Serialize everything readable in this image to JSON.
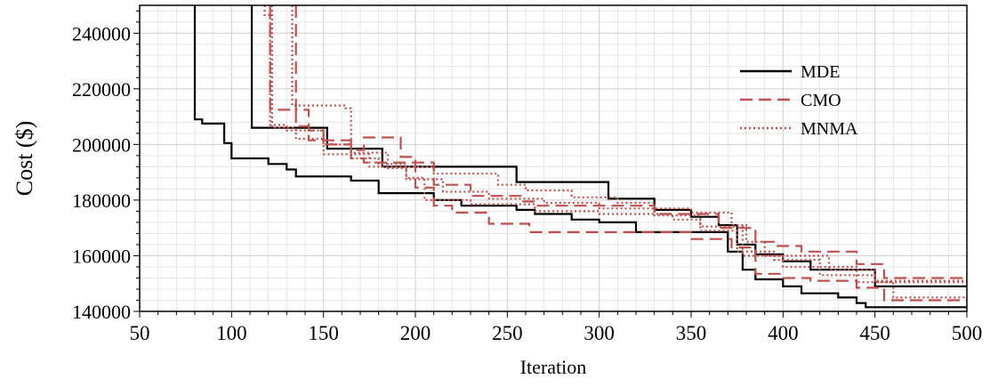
{
  "chart_data": {
    "type": "line",
    "title": "",
    "xlabel": "Iteration",
    "ylabel": "Cost ($)",
    "xlim": [
      50,
      500
    ],
    "ylim": [
      140000,
      250000
    ],
    "xticks": [
      50,
      100,
      150,
      200,
      250,
      300,
      350,
      400,
      450,
      500
    ],
    "yticks": [
      140000,
      160000,
      180000,
      200000,
      220000,
      240000
    ],
    "grid": true,
    "legend": "top-right",
    "series": [
      {
        "name": "MDE",
        "color": "#000000",
        "dash": "solid",
        "lines": [
          [
            [
              80,
              250000
            ],
            [
              80,
              209000
            ],
            [
              84,
              209000
            ],
            [
              84,
              207500
            ],
            [
              96,
              207500
            ],
            [
              96,
              200500
            ],
            [
              100,
              200500
            ],
            [
              100,
              195000
            ],
            [
              120,
              195000
            ],
            [
              120,
              193000
            ],
            [
              130,
              193000
            ],
            [
              130,
              191000
            ],
            [
              135,
              191000
            ],
            [
              135,
              188500
            ],
            [
              165,
              188500
            ],
            [
              165,
              187000
            ],
            [
              180,
              187000
            ],
            [
              180,
              182500
            ],
            [
              210,
              182500
            ],
            [
              210,
              180000
            ],
            [
              225,
              180000
            ],
            [
              225,
              178000
            ],
            [
              255,
              178000
            ],
            [
              255,
              176500
            ],
            [
              265,
              176500
            ],
            [
              265,
              175000
            ],
            [
              285,
              175000
            ],
            [
              285,
              173000
            ],
            [
              300,
              173000
            ],
            [
              300,
              172000
            ],
            [
              320,
              172000
            ],
            [
              320,
              168500
            ],
            [
              370,
              168500
            ],
            [
              370,
              161500
            ],
            [
              378,
              161500
            ],
            [
              378,
              155000
            ],
            [
              385,
              155000
            ],
            [
              385,
              151500
            ],
            [
              400,
              151500
            ],
            [
              400,
              149000
            ],
            [
              410,
              149000
            ],
            [
              410,
              146500
            ],
            [
              430,
              146500
            ],
            [
              430,
              145000
            ],
            [
              440,
              145000
            ],
            [
              440,
              143000
            ],
            [
              445,
              143000
            ],
            [
              445,
              141500
            ],
            [
              500,
              141500
            ]
          ],
          [
            [
              111,
              250000
            ],
            [
              111,
              206000
            ],
            [
              152,
              206000
            ],
            [
              152,
              198500
            ],
            [
              182,
              198500
            ],
            [
              182,
              192000
            ],
            [
              255,
              192000
            ],
            [
              255,
              186500
            ],
            [
              305,
              186500
            ],
            [
              305,
              180500
            ],
            [
              330,
              180500
            ],
            [
              330,
              176500
            ],
            [
              350,
              176500
            ],
            [
              350,
              174000
            ],
            [
              365,
              174000
            ],
            [
              365,
              171000
            ],
            [
              375,
              171000
            ],
            [
              375,
              164000
            ],
            [
              385,
              164000
            ],
            [
              385,
              160500
            ],
            [
              400,
              160500
            ],
            [
              400,
              158000
            ],
            [
              415,
              158000
            ],
            [
              415,
              155000
            ],
            [
              450,
              155000
            ],
            [
              450,
              149000
            ],
            [
              500,
              149000
            ]
          ]
        ]
      },
      {
        "name": "CMO",
        "color": "#c0504d",
        "dash": "dashed",
        "lines": [
          [
            [
              135,
              250000
            ],
            [
              135,
              212500
            ],
            [
              142,
              212500
            ],
            [
              142,
              205000
            ],
            [
              150,
              205000
            ],
            [
              150,
              200000
            ],
            [
              165,
              200000
            ],
            [
              165,
              198000
            ],
            [
              172,
              198000
            ],
            [
              172,
              202500
            ],
            [
              192,
              202500
            ],
            [
              192,
              195500
            ],
            [
              200,
              195500
            ],
            [
              200,
              184500
            ],
            [
              210,
              184500
            ],
            [
              210,
              178000
            ],
            [
              220,
              178000
            ],
            [
              220,
              175500
            ],
            [
              240,
              175500
            ],
            [
              240,
              171500
            ],
            [
              262,
              171500
            ],
            [
              262,
              168500
            ],
            [
              350,
              168500
            ],
            [
              350,
              166000
            ],
            [
              372,
              166000
            ],
            [
              372,
              163000
            ],
            [
              385,
              163000
            ],
            [
              385,
              153500
            ],
            [
              400,
              153500
            ],
            [
              400,
              152000
            ],
            [
              415,
              152000
            ],
            [
              415,
              151000
            ],
            [
              440,
              151000
            ],
            [
              440,
              148500
            ],
            [
              455,
              148500
            ],
            [
              455,
              144000
            ],
            [
              500,
              144000
            ]
          ],
          [
            [
              121,
              250000
            ],
            [
              121,
              212500
            ],
            [
              135,
              212500
            ],
            [
              135,
              206500
            ],
            [
              142,
              206500
            ],
            [
              142,
              201500
            ],
            [
              165,
              201500
            ],
            [
              165,
              195000
            ],
            [
              172,
              195000
            ],
            [
              172,
              193500
            ],
            [
              210,
              193500
            ],
            [
              210,
              185500
            ],
            [
              230,
              185500
            ],
            [
              230,
              181500
            ],
            [
              258,
              181500
            ],
            [
              258,
              179500
            ],
            [
              265,
              179500
            ],
            [
              265,
              178000
            ],
            [
              330,
              178000
            ],
            [
              330,
              175000
            ],
            [
              365,
              175000
            ],
            [
              365,
              170000
            ],
            [
              385,
              170000
            ],
            [
              385,
              165000
            ],
            [
              395,
              165000
            ],
            [
              395,
              163500
            ],
            [
              410,
              163500
            ],
            [
              410,
              161500
            ],
            [
              440,
              161500
            ],
            [
              440,
              157000
            ],
            [
              455,
              157000
            ],
            [
              455,
              152000
            ],
            [
              500,
              152000
            ]
          ]
        ]
      },
      {
        "name": "MNMA",
        "color": "#c0504d",
        "dash": "dotted",
        "lines": [
          [
            [
              118,
              250000
            ],
            [
              118,
              246500
            ],
            [
              121,
              246500
            ],
            [
              121,
              207000
            ],
            [
              130,
              207000
            ],
            [
              130,
              205000
            ],
            [
              150,
              205000
            ],
            [
              150,
              200000
            ],
            [
              165,
              200000
            ],
            [
              165,
              195000
            ],
            [
              180,
              195000
            ],
            [
              180,
              193000
            ],
            [
              195,
              193000
            ],
            [
              195,
              188000
            ],
            [
              205,
              188000
            ],
            [
              205,
              180000
            ],
            [
              230,
              180000
            ],
            [
              230,
              178500
            ],
            [
              265,
              178500
            ],
            [
              265,
              176000
            ],
            [
              300,
              176000
            ],
            [
              300,
              175000
            ],
            [
              340,
              175000
            ],
            [
              340,
              173000
            ],
            [
              355,
              173000
            ],
            [
              355,
              170500
            ],
            [
              378,
              170500
            ],
            [
              378,
              160000
            ],
            [
              400,
              160000
            ],
            [
              400,
              156000
            ],
            [
              420,
              156000
            ],
            [
              420,
              153000
            ],
            [
              450,
              153000
            ],
            [
              450,
              150500
            ],
            [
              500,
              150500
            ]
          ],
          [
            [
              133,
              250000
            ],
            [
              133,
              214000
            ],
            [
              162,
              214000
            ],
            [
              162,
              213000
            ],
            [
              165,
              213000
            ],
            [
              165,
              197000
            ],
            [
              185,
              197000
            ],
            [
              185,
              191500
            ],
            [
              195,
              191500
            ],
            [
              195,
              192000
            ],
            [
              210,
              192000
            ],
            [
              210,
              189500
            ],
            [
              245,
              189500
            ],
            [
              245,
              185500
            ],
            [
              260,
              185500
            ],
            [
              260,
              183500
            ],
            [
              285,
              183500
            ],
            [
              285,
              181000
            ],
            [
              310,
              181000
            ],
            [
              310,
              179000
            ],
            [
              330,
              179000
            ],
            [
              330,
              177000
            ],
            [
              350,
              177000
            ],
            [
              350,
              175500
            ],
            [
              372,
              175500
            ],
            [
              372,
              171000
            ],
            [
              380,
              171000
            ],
            [
              380,
              165000
            ],
            [
              390,
              165000
            ],
            [
              390,
              160000
            ],
            [
              425,
              160000
            ],
            [
              425,
              155000
            ],
            [
              450,
              155000
            ],
            [
              450,
              151000
            ],
            [
              500,
              151000
            ]
          ],
          [
            [
              122,
              250000
            ],
            [
              122,
              206000
            ],
            [
              135,
              206000
            ],
            [
              135,
              202000
            ],
            [
              150,
              202000
            ],
            [
              150,
              196500
            ],
            [
              175,
              196500
            ],
            [
              175,
              192000
            ],
            [
              195,
              192000
            ],
            [
              195,
              187500
            ],
            [
              215,
              187500
            ],
            [
              215,
              183000
            ],
            [
              240,
              183000
            ],
            [
              240,
              180500
            ],
            [
              270,
              180500
            ],
            [
              270,
              179000
            ],
            [
              300,
              179000
            ],
            [
              300,
              177000
            ],
            [
              330,
              177000
            ],
            [
              330,
              174500
            ],
            [
              355,
              174500
            ],
            [
              355,
              169000
            ],
            [
              375,
              169000
            ],
            [
              375,
              161500
            ],
            [
              395,
              161500
            ],
            [
              395,
              158500
            ],
            [
              420,
              158500
            ],
            [
              420,
              156000
            ],
            [
              440,
              156000
            ],
            [
              440,
              150500
            ],
            [
              460,
              150500
            ],
            [
              460,
              145000
            ],
            [
              500,
              145000
            ]
          ]
        ]
      }
    ]
  }
}
